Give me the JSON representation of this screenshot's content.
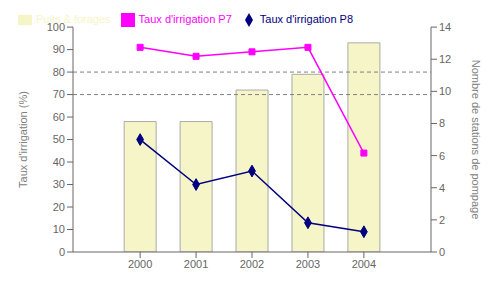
{
  "chart_data": {
    "type": "bar",
    "x": [
      2000,
      2001,
      2002,
      2003,
      2004
    ],
    "xlim": [
      1998.8,
      2005.2
    ],
    "xticks": [
      2000,
      2001,
      2002,
      2003,
      2004
    ],
    "ylabel": "Taux d'irrigation (%)",
    "ylim": [
      0,
      100
    ],
    "yticks": [
      0,
      10,
      20,
      30,
      40,
      50,
      60,
      70,
      80,
      90,
      100
    ],
    "y2label": "Nombre de stations de pompage",
    "y2lim": [
      0,
      14
    ],
    "y2ticks": [
      0,
      2,
      4,
      6,
      8,
      10,
      12,
      14
    ],
    "reference_lines": [
      80,
      70
    ],
    "legend": "upper left",
    "series": [
      {
        "name": "Puits & forages",
        "type": "bar",
        "color": "#f5f5c8",
        "edgecolor": "#aaaaaa",
        "values": [
          58,
          58,
          72,
          79,
          93
        ]
      },
      {
        "name": "Taux d'irrigation P7",
        "type": "line",
        "color": "#ff00ff",
        "marker": "square",
        "values": [
          91,
          87,
          89,
          91,
          44
        ]
      },
      {
        "name": "Taux d'irrigation P8",
        "type": "line",
        "color": "#000080",
        "marker": "diamond",
        "values": [
          50,
          30,
          36,
          13,
          9
        ]
      }
    ]
  }
}
